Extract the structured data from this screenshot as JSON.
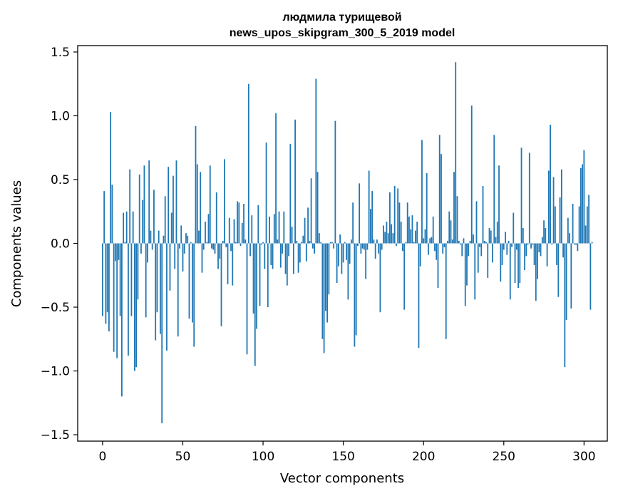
{
  "chart_data": {
    "type": "bar",
    "title_line1": "людмила турищевой",
    "title_line2": "news_upos_skipgram_300_5_2019 model",
    "xlabel": "Vector components",
    "ylabel": "Components values",
    "xlim": [
      -15.5,
      314.5
    ],
    "ylim": [
      -1.55,
      1.55
    ],
    "xticks": [
      0,
      50,
      100,
      150,
      200,
      250,
      300
    ],
    "xtick_labels": [
      "0",
      "50",
      "100",
      "150",
      "200",
      "250",
      "300"
    ],
    "yticks": [
      -1.5,
      -1.0,
      -0.5,
      0.0,
      0.5,
      1.0,
      1.5
    ],
    "ytick_labels": [
      "−1.5",
      "−1.0",
      "−0.5",
      "0.0",
      "0.5",
      "1.0",
      "1.5"
    ],
    "bar_color": "#1f77b4",
    "grid": false,
    "legend": "none",
    "values": [
      -0.57,
      0.41,
      -0.63,
      -0.54,
      -0.69,
      1.03,
      0.46,
      -0.85,
      -0.14,
      -0.9,
      -0.13,
      -0.57,
      -1.2,
      0.24,
      0.01,
      0.25,
      -0.88,
      0.58,
      -0.57,
      0.25,
      -1.0,
      -0.97,
      -0.44,
      0.54,
      -0.08,
      0.34,
      0.61,
      -0.58,
      -0.15,
      0.65,
      0.1,
      -0.05,
      0.42,
      -0.76,
      -0.54,
      0.1,
      -0.71,
      -1.41,
      0.06,
      0.37,
      -0.84,
      0.6,
      -0.37,
      0.24,
      0.53,
      -0.2,
      0.65,
      -0.73,
      -0.04,
      0.14,
      -0.22,
      -0.08,
      0.08,
      0.06,
      -0.59,
      0.01,
      -0.62,
      -0.81,
      0.92,
      0.62,
      0.1,
      0.56,
      -0.23,
      -0.05,
      0.17,
      0.01,
      0.23,
      0.61,
      -0.04,
      -0.05,
      -0.08,
      0.4,
      -0.2,
      -0.12,
      -0.65,
      0.02,
      0.66,
      -0.03,
      -0.32,
      0.2,
      -0.06,
      -0.33,
      0.19,
      0.01,
      0.33,
      0.32,
      -0.02,
      0.16,
      0.31,
      0.03,
      -0.87,
      1.25,
      -0.1,
      0.22,
      -0.55,
      -0.96,
      -0.67,
      0.3,
      -0.49,
      -0.01,
      0.01,
      -0.2,
      0.79,
      -0.5,
      0.21,
      -0.17,
      -0.2,
      0.23,
      1.02,
      0.03,
      0.25,
      -0.19,
      -0.08,
      0.25,
      -0.24,
      -0.33,
      -0.1,
      0.78,
      0.13,
      -0.24,
      0.97,
      0.02,
      -0.23,
      -0.15,
      0.01,
      0.06,
      0.2,
      -0.14,
      0.28,
      0.02,
      0.51,
      -0.04,
      -0.08,
      1.29,
      0.56,
      0.08,
      0.01,
      -0.75,
      -0.86,
      -0.53,
      -0.62,
      -0.4,
      0.01,
      0.01,
      -0.04,
      0.96,
      -0.31,
      -0.18,
      0.07,
      -0.24,
      -0.15,
      0.01,
      -0.13,
      -0.44,
      -0.16,
      0.03,
      0.32,
      -0.81,
      -0.72,
      -0.02,
      0.47,
      -0.08,
      -0.04,
      -0.05,
      -0.28,
      -0.05,
      0.57,
      0.27,
      0.41,
      0.03,
      -0.12,
      0.03,
      -0.08,
      -0.54,
      -0.05,
      0.14,
      0.09,
      0.17,
      0.08,
      0.4,
      0.15,
      0.08,
      0.45,
      -0.02,
      0.43,
      0.32,
      0.17,
      -0.06,
      -0.52,
      0.01,
      0.32,
      0.21,
      0.11,
      0.22,
      0.01,
      0.1,
      0.17,
      -0.82,
      -0.18,
      0.81,
      0.04,
      0.11,
      0.55,
      -0.09,
      0.04,
      0.05,
      0.21,
      -0.06,
      -0.13,
      -0.35,
      0.85,
      0.7,
      -0.08,
      -0.03,
      -0.75,
      0.02,
      0.25,
      0.18,
      0.03,
      0.56,
      1.42,
      0.37,
      0.02,
      -0.01,
      -0.1,
      0.04,
      -0.49,
      -0.33,
      -0.1,
      0.02,
      1.08,
      0.07,
      -0.44,
      0.33,
      -0.23,
      -0.03,
      -0.1,
      0.45,
      0.02,
      0.01,
      -0.27,
      0.12,
      0.1,
      -0.15,
      0.85,
      0.05,
      0.17,
      0.61,
      -0.3,
      -0.17,
      -0.05,
      0.09,
      -0.09,
      0.02,
      -0.44,
      -0.03,
      0.24,
      -0.31,
      -0.05,
      -0.35,
      -0.31,
      0.75,
      0.12,
      -0.21,
      -0.1,
      -0.01,
      0.71,
      -0.04,
      -0.01,
      -0.17,
      -0.45,
      -0.28,
      -0.07,
      -0.1,
      0.05,
      0.18,
      0.12,
      -0.18,
      0.57,
      0.93,
      -0.01,
      0.52,
      0.29,
      -0.17,
      -0.42,
      0.36,
      0.58,
      -0.11,
      -0.97,
      -0.6,
      0.2,
      0.08,
      -0.51,
      0.31,
      -0.01,
      -0.01,
      -0.06,
      0.29,
      0.59,
      0.62,
      0.73,
      0.14,
      0.29,
      0.38,
      -0.52,
      0.01
    ]
  }
}
